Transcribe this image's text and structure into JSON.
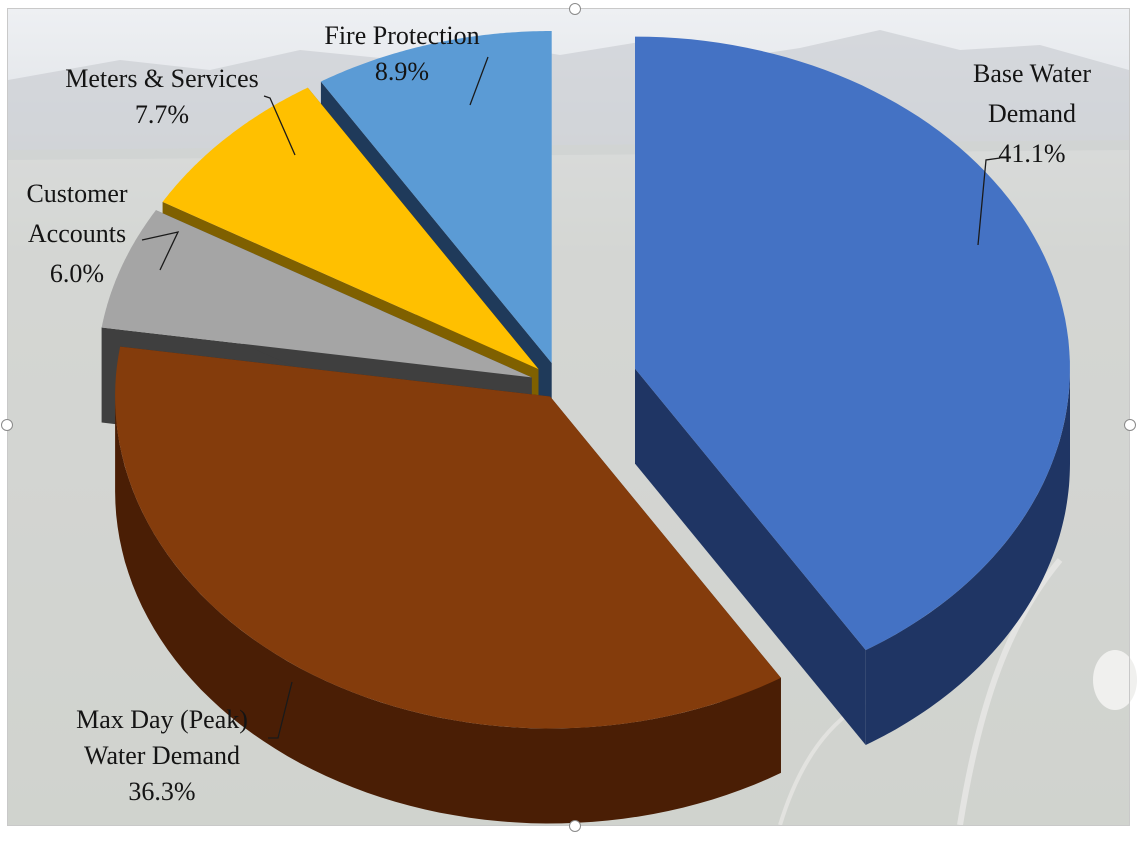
{
  "chart_data": {
    "type": "pie",
    "categories": [
      "Base Water Demand",
      "Max Day (Peak) Water Demand",
      "Customer Accounts",
      "Meters & Services",
      "Fire Protection"
    ],
    "values": [
      41.1,
      36.3,
      6.0,
      7.7,
      8.9
    ],
    "unit": "%",
    "exploded": true,
    "three_d": true,
    "legend": "none",
    "slices": [
      {
        "name": "Base Water Demand",
        "value": 41.1,
        "label_lines": [
          "Base Water",
          "Demand",
          "41.1%"
        ],
        "color": "#4472C4",
        "side_color": "#1F3564"
      },
      {
        "name": "Max Day (Peak) Water Demand",
        "value": 36.3,
        "label_lines": [
          "Max Day (Peak)",
          "Water Demand",
          "36.3%"
        ],
        "color": "#843C0C",
        "side_color": "#4A1E05"
      },
      {
        "name": "Customer Accounts",
        "value": 6.0,
        "label_lines": [
          "Customer",
          "Accounts",
          "6.0%"
        ],
        "color": "#A5A5A5",
        "side_color": "#3F3F3F"
      },
      {
        "name": "Meters & Services",
        "value": 7.7,
        "label_lines": [
          "Meters & Services",
          "7.7%"
        ],
        "color": "#FFC000",
        "side_color": "#7F6000"
      },
      {
        "name": "Fire Protection",
        "value": 8.9,
        "label_lines": [
          "Fire Protection",
          "8.9%"
        ],
        "color": "#5B9BD5",
        "side_color": "#1F3A5A"
      }
    ]
  },
  "background": {
    "sky_color": "#E6E9ED",
    "mountain_color": "#C9CDD1",
    "ground_color": "#D2D4D0"
  },
  "selection_frame": {
    "border_color": "#C9C9C9",
    "handle_color": "#FFFFFF"
  }
}
